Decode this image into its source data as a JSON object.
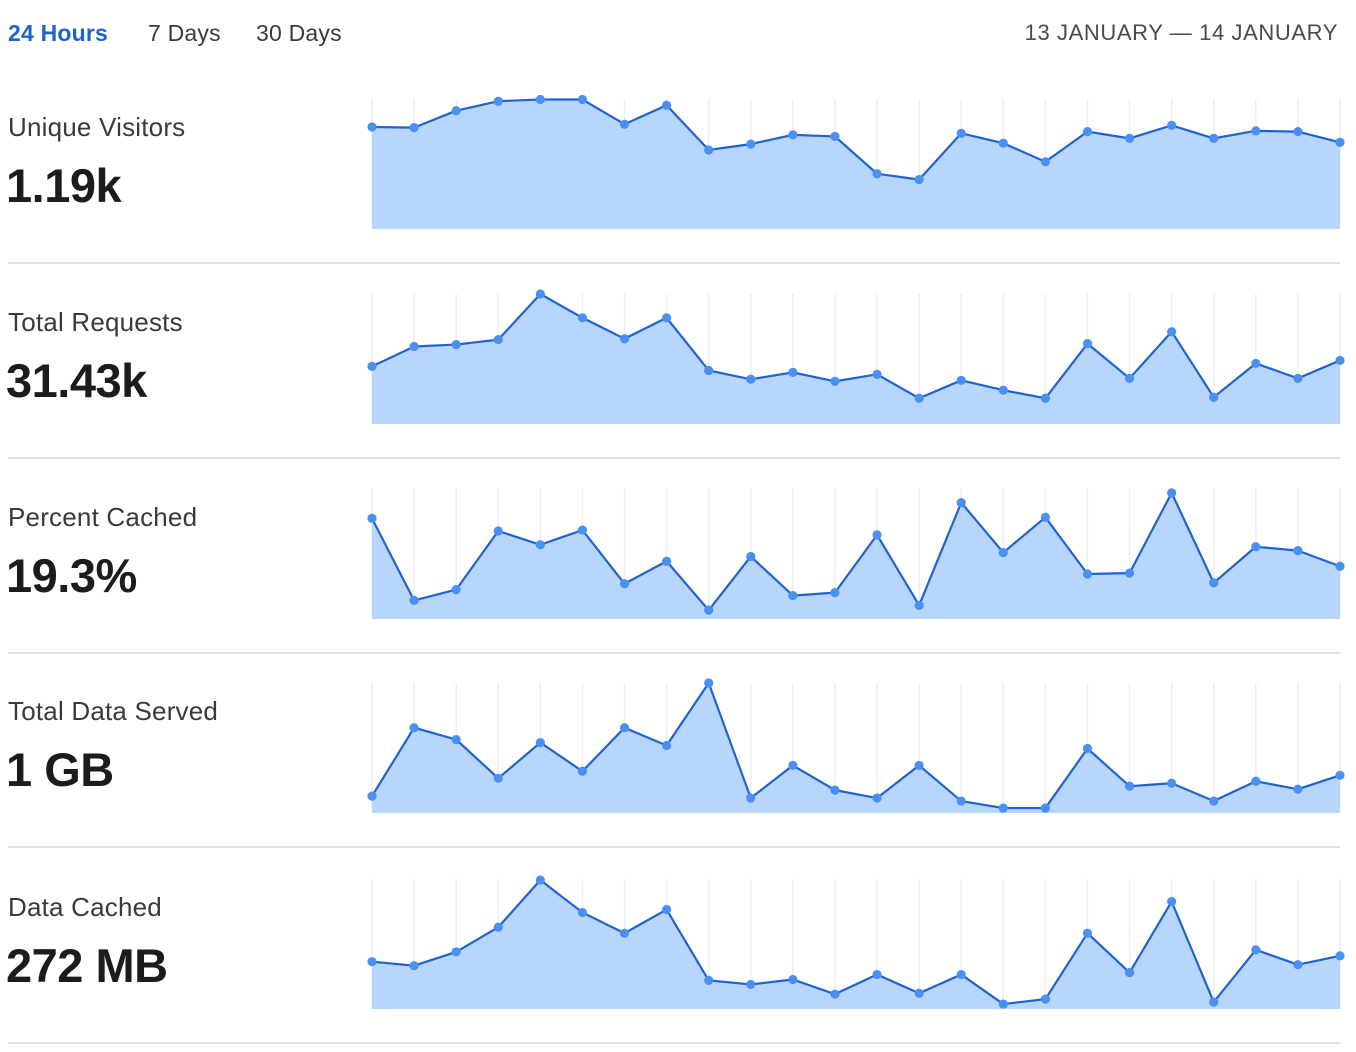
{
  "tabs": [
    {
      "label": "24 Hours",
      "active": true
    },
    {
      "label": "7 Days",
      "active": false
    },
    {
      "label": "30 Days",
      "active": false
    }
  ],
  "date_range": "13 JANUARY — 14 JANUARY",
  "colors": {
    "accent": "#1e63c6",
    "line": "#1f63d1",
    "fill": "#b8d6fb",
    "point": "#4a90f2",
    "grid": "#e6effa"
  },
  "metrics": [
    {
      "label": "Unique Visitors",
      "value": "1.19k"
    },
    {
      "label": "Total Requests",
      "value": "31.43k"
    },
    {
      "label": "Percent Cached",
      "value": "19.3%"
    },
    {
      "label": "Total Data Served",
      "value": "1 GB"
    },
    {
      "label": "Data Cached",
      "value": "272 MB"
    }
  ],
  "chart_data": [
    {
      "type": "area",
      "grid": true,
      "points": 24,
      "ylim": [
        0,
        100
      ],
      "values": [
        78.5,
        78,
        91,
        98.3,
        99.6,
        99.6,
        80.6,
        95.2,
        60.8,
        65.3,
        72.4,
        71.2,
        42.5,
        38,
        73.6,
        66,
        51.7,
        74.9,
        69.7,
        79.7,
        69.7,
        75.5,
        74.9,
        66.7
      ]
    },
    {
      "type": "area",
      "grid": true,
      "points": 24,
      "ylim": [
        0,
        100
      ],
      "values": [
        44.3,
        59.6,
        61.1,
        64.9,
        100,
        81.7,
        65.6,
        81.7,
        41.2,
        34.4,
        39.7,
        32.8,
        38.2,
        19.8,
        33.6,
        26,
        19.8,
        61.8,
        35.1,
        71,
        20.6,
        46.6,
        35.1,
        48.9
      ]
    },
    {
      "type": "area",
      "grid": true,
      "points": 24,
      "ylim": [
        0,
        100
      ],
      "values": [
        77.4,
        14.3,
        22.6,
        67.7,
        57.1,
        68.4,
        27.1,
        44.4,
        6.8,
        48.1,
        18,
        20.3,
        64.7,
        10.5,
        89.5,
        51.1,
        78.2,
        34.6,
        35.3,
        97,
        27.8,
        55.6,
        52.6,
        40.6
      ]
    },
    {
      "type": "area",
      "grid": true,
      "points": 24,
      "ylim": [
        0,
        100
      ],
      "values": [
        13,
        65.6,
        56.5,
        26.7,
        54.2,
        32.1,
        65.6,
        51.9,
        100,
        11.5,
        36.6,
        17.6,
        11.5,
        36.6,
        9.2,
        3.8,
        3.8,
        49.6,
        20.6,
        22.9,
        9.2,
        24.4,
        18.3,
        29
      ]
    },
    {
      "type": "area",
      "grid": true,
      "points": 24,
      "ylim": [
        0,
        100
      ],
      "values": [
        36.4,
        33.3,
        43.9,
        62.9,
        99.2,
        74.2,
        58.3,
        76.5,
        22,
        18.9,
        22.7,
        11.4,
        26.5,
        12.1,
        26.5,
        3.8,
        7.6,
        58.3,
        28,
        82.6,
        5.3,
        45.5,
        34.1,
        40.9
      ]
    }
  ]
}
